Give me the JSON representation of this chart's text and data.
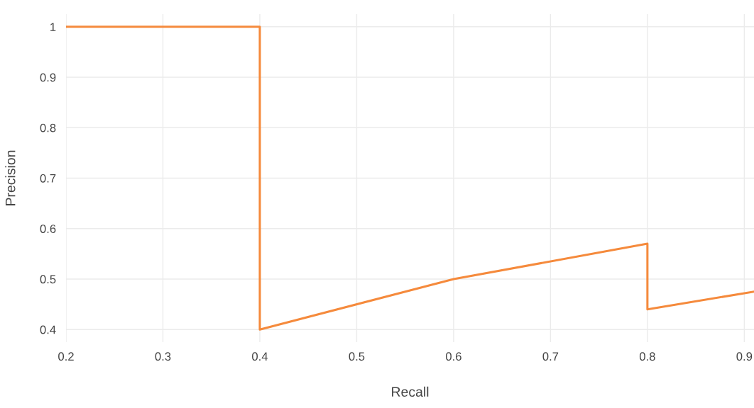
{
  "chart_data": {
    "type": "line",
    "xlabel": "Recall",
    "ylabel": "Precision",
    "series": [
      {
        "color": "#f58a3c",
        "x": [
          0.2,
          0.4,
          0.4,
          0.6,
          0.8,
          0.8,
          0.91
        ],
        "values": [
          1,
          1,
          0.4,
          0.5,
          0.57,
          0.44,
          0.475
        ]
      }
    ],
    "xlim": [
      0.2,
      0.91
    ],
    "ylim": [
      0.375,
      1.025
    ],
    "xticks": [
      0.2,
      0.3,
      0.4,
      0.5,
      0.6,
      0.7,
      0.8,
      0.9
    ],
    "yticks": [
      0.4,
      0.5,
      0.6,
      0.7,
      0.8,
      0.9,
      1
    ],
    "grid": true,
    "marker": "none",
    "line_style": "solid"
  }
}
